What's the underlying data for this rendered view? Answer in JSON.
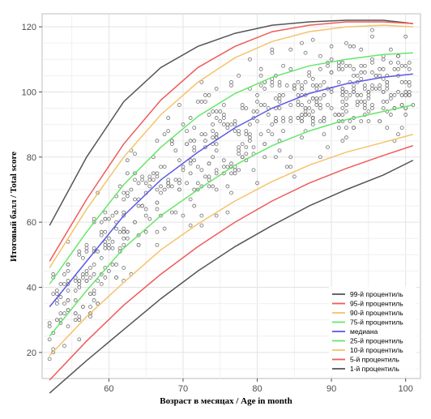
{
  "chart_data": {
    "type": "line",
    "title": "",
    "xlabel": "Возраст в месяцах / Age in month",
    "ylabel": "Итоговый балл / Total score",
    "xlim": [
      51,
      102
    ],
    "ylim": [
      12,
      124
    ],
    "xticks": [
      "60",
      "70",
      "80",
      "90",
      "100"
    ],
    "yticks": [
      "20",
      "40",
      "60",
      "80",
      "100",
      "120"
    ],
    "grid": true,
    "legend_position": "bottom-right",
    "x": [
      52,
      57,
      62,
      67,
      72,
      77,
      82,
      87,
      92,
      97,
      101
    ],
    "series": [
      {
        "name": "99-й процентиль",
        "color": "#555555",
        "values": [
          59,
          80,
          97,
          107.5,
          114,
          118,
          120.5,
          121.5,
          122,
          122,
          121
        ]
      },
      {
        "name": "95-й процентиль",
        "color": "#ef5b5b",
        "values": [
          48,
          67,
          84,
          97.5,
          107.5,
          114,
          118.5,
          120.5,
          121.5,
          121.5,
          121
        ]
      },
      {
        "name": "90-й процентиль",
        "color": "#f5c26b",
        "values": [
          46,
          64,
          80,
          93,
          103,
          110.5,
          115.5,
          118.5,
          120,
          120.5,
          120
        ]
      },
      {
        "name": "75-й процентиль",
        "color": "#66e66a",
        "values": [
          41,
          57,
          71.5,
          83,
          92.5,
          99.5,
          104.5,
          108,
          110,
          111.5,
          112
        ]
      },
      {
        "name": "медиана",
        "color": "#5a5ae6",
        "values": [
          34,
          48,
          62,
          73,
          81.5,
          89,
          95,
          99.5,
          102.5,
          104.5,
          105.5
        ]
      },
      {
        "name": "25-й процентиль",
        "color": "#66e66a",
        "values": [
          25,
          39,
          52,
          62,
          70,
          77.5,
          83.5,
          88,
          91.5,
          94,
          96
        ]
      },
      {
        "name": "10-й процентиль",
        "color": "#f5c26b",
        "values": [
          19,
          31,
          41.5,
          51.5,
          59.5,
          66.5,
          72.5,
          77.5,
          81.5,
          84.5,
          87
        ]
      },
      {
        "name": "5-й процентиль",
        "color": "#ef5b5b",
        "values": [
          11.5,
          23.5,
          34.5,
          44,
          52.5,
          60,
          66.5,
          72,
          76.5,
          80.5,
          83.5
        ]
      },
      {
        "name": "1-й процентиль",
        "color": "#555555",
        "values": [
          7.5,
          17.5,
          27,
          36.5,
          45,
          52.5,
          59,
          65,
          70,
          74.5,
          79
        ]
      }
    ]
  }
}
